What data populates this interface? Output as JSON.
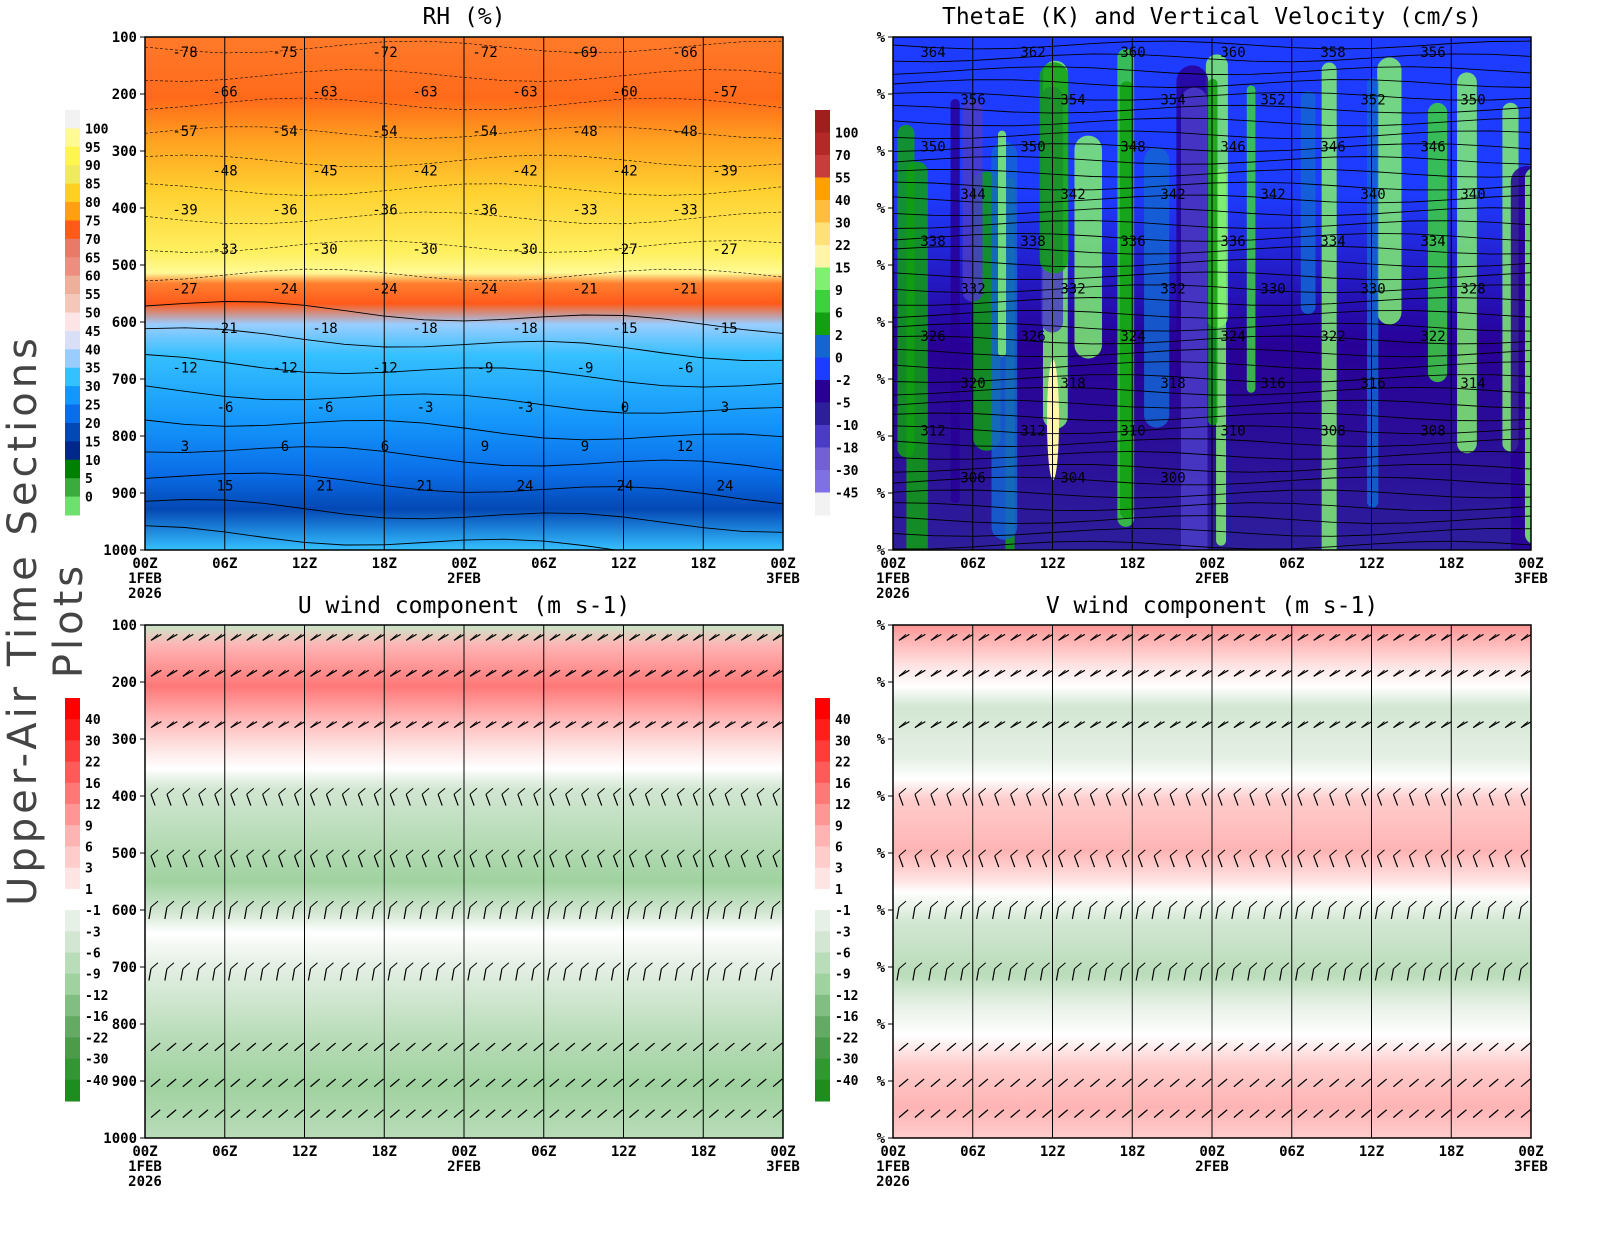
{
  "side_title": "Upper-Air Time Sections Plots",
  "chart_data": [
    {
      "type": "heatmap",
      "title": "RH (%)",
      "x_ticks": [
        "00Z",
        "06Z",
        "12Z",
        "18Z",
        "00Z",
        "06Z",
        "12Z",
        "18Z",
        "00Z"
      ],
      "x_dates": {
        "0": "1FEB",
        "4": "2FEB",
        "8": "3FEB"
      },
      "x_year": "2026",
      "y_ticks": [
        "100",
        "200",
        "300",
        "400",
        "500",
        "600",
        "700",
        "800",
        "900",
        "1000"
      ],
      "y_reversed": true,
      "colorbar": {
        "levels": [
          "0",
          "5",
          "10",
          "15",
          "20",
          "25",
          "30",
          "35",
          "40",
          "45",
          "50",
          "55",
          "60",
          "65",
          "70",
          "75",
          "80",
          "85",
          "90",
          "95",
          "100"
        ],
        "colors": [
          "#f2f2f2",
          "#fffa96",
          "#fff550",
          "#f0ea60",
          "#ffd020",
          "#ffa010",
          "#ff5a1a",
          "#e87a6a",
          "#ec8f80",
          "#eeb09a",
          "#f4c8b8",
          "#fde4e6",
          "#dadff8",
          "#9acdff",
          "#35c0ff",
          "#1496fa",
          "#0a6ee8",
          "#0448b4",
          "#002888",
          "#008000",
          "#3caa3c",
          "#6ee06e"
        ]
      },
      "contour_labels": [
        "-78",
        "-75",
        "-72",
        "-72",
        "-69",
        "-66",
        "-66",
        "-63",
        "-63",
        "-63",
        "-60",
        "-57",
        "-57",
        "-54",
        "-54",
        "-54",
        "-48",
        "-48",
        "-48",
        "-45",
        "-42",
        "-42",
        "-42",
        "-39",
        "-39",
        "-36",
        "-36",
        "-36",
        "-33",
        "-33",
        "-33",
        "-30",
        "-30",
        "-30",
        "-27",
        "-27",
        "-27",
        "-24",
        "-24",
        "-24",
        "-21",
        "-21",
        "-21",
        "-18",
        "-18",
        "-18",
        "-15",
        "-15",
        "-12",
        "-12",
        "-12",
        "-9",
        "-9",
        "-6",
        "-6",
        "-6",
        "-3",
        "-3",
        "0",
        "3",
        "3",
        "6",
        "6",
        "9",
        "9",
        "12",
        "15",
        "21",
        "21",
        "24",
        "24",
        "24"
      ]
    },
    {
      "type": "heatmap",
      "title": "ThetaE (K) and Vertical Velocity (cm/s)",
      "x_ticks": [
        "00Z",
        "06Z",
        "12Z",
        "18Z",
        "00Z",
        "06Z",
        "12Z",
        "18Z",
        "00Z"
      ],
      "x_dates": {
        "0": "1FEB",
        "4": "2FEB",
        "8": "3FEB"
      },
      "x_year": "2026",
      "y_tick_label": "%",
      "colorbar": {
        "levels": [
          "100",
          "70",
          "55",
          "40",
          "30",
          "22",
          "15",
          "9",
          "6",
          "2",
          "0",
          "-2",
          "-5",
          "-10",
          "-18",
          "-30",
          "-45"
        ],
        "colors": [
          "#a01e1e",
          "#b42828",
          "#c83c3c",
          "#ffa000",
          "#ffbe3c",
          "#ffe178",
          "#fff5aa",
          "#80f070",
          "#3cd23c",
          "#10a010",
          "#1464d2",
          "#1e3cff",
          "#280096",
          "#2d1e9b",
          "#4b3cc8",
          "#7360d7",
          "#8070e6",
          "#f2f2f2"
        ]
      },
      "contour_labels": [
        "364",
        "362",
        "360",
        "360",
        "358",
        "356",
        "356",
        "354",
        "354",
        "352",
        "352",
        "350",
        "350",
        "350",
        "348",
        "346",
        "346",
        "346",
        "344",
        "342",
        "342",
        "342",
        "340",
        "340",
        "338",
        "338",
        "336",
        "336",
        "334",
        "334",
        "332",
        "332",
        "332",
        "330",
        "330",
        "328",
        "326",
        "326",
        "324",
        "324",
        "322",
        "322",
        "320",
        "318",
        "318",
        "316",
        "316",
        "314",
        "312",
        "312",
        "310",
        "310",
        "308",
        "308",
        "306",
        "304",
        "300"
      ]
    },
    {
      "type": "heatmap",
      "title": "U wind component (m s-1)",
      "x_ticks": [
        "00Z",
        "06Z",
        "12Z",
        "18Z",
        "00Z",
        "06Z",
        "12Z",
        "18Z",
        "00Z"
      ],
      "x_dates": {
        "0": "1FEB",
        "4": "2FEB",
        "8": "3FEB"
      },
      "x_year": "2026",
      "y_ticks": [
        "100",
        "200",
        "300",
        "400",
        "500",
        "600",
        "700",
        "800",
        "900",
        "1000"
      ],
      "y_reversed": true,
      "colorbar": {
        "levels": [
          "40",
          "30",
          "22",
          "16",
          "12",
          "9",
          "6",
          "3",
          "1",
          "-1",
          "-3",
          "-6",
          "-9",
          "-12",
          "-16",
          "-22",
          "-30",
          "-40"
        ]
      },
      "wind_barbs": true
    },
    {
      "type": "heatmap",
      "title": "V wind component (m s-1)",
      "x_ticks": [
        "00Z",
        "06Z",
        "12Z",
        "18Z",
        "00Z",
        "06Z",
        "12Z",
        "18Z",
        "00Z"
      ],
      "x_dates": {
        "0": "1FEB",
        "4": "2FEB",
        "8": "3FEB"
      },
      "x_year": "2026",
      "y_tick_label": "%",
      "colorbar": {
        "levels": [
          "40",
          "30",
          "22",
          "16",
          "12",
          "9",
          "6",
          "3",
          "1",
          "-1",
          "-3",
          "-6",
          "-9",
          "-12",
          "-16",
          "-22",
          "-30",
          "-40"
        ]
      },
      "wind_barbs": true
    }
  ],
  "colors": {
    "wind_pos": [
      "#ff0000",
      "#ff1e1e",
      "#ff3c3c",
      "#ff5a5a",
      "#ff7878",
      "#ff9696",
      "#ffb4b4",
      "#ffcccc",
      "#ffe4e4"
    ],
    "wind_neg": [
      "#e6f0e6",
      "#d2e6d2",
      "#b9dcb9",
      "#a0d2a0",
      "#82be82",
      "#64aa64",
      "#4b9b4b",
      "#329632",
      "#1e8c1e"
    ]
  }
}
